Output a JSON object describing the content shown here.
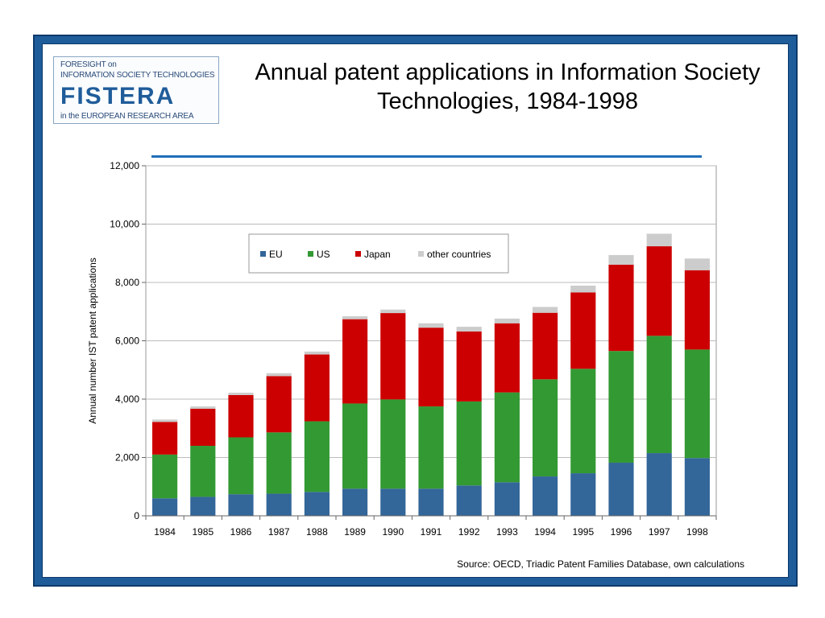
{
  "logo": {
    "line1": "FORESIGHT on",
    "line2": "INFORMATION SOCIETY TECHNOLOGIES",
    "brand": "FISTERA",
    "line4": "in the EUROPEAN RESEARCH AREA"
  },
  "title": "Annual patent applications in Information Society Technologies, 1984-1998",
  "source": "Source:  OECD, Triadic Patent Families Database, own calculations",
  "chart_data": {
    "type": "bar",
    "stacked": true,
    "title": "Annual patent applications in Information Society Technologies, 1984-1998",
    "xlabel": "",
    "ylabel": "Annual number IST patent applications",
    "ylim": [
      0,
      12000
    ],
    "yticks": [
      0,
      2000,
      4000,
      6000,
      8000,
      10000,
      12000
    ],
    "ytick_labels": [
      "0",
      "2,000",
      "4,000",
      "6,000",
      "8,000",
      "10,000",
      "12,000"
    ],
    "grid": true,
    "legend_position": "top-center",
    "categories": [
      "1984",
      "1985",
      "1986",
      "1987",
      "1988",
      "1989",
      "1990",
      "1991",
      "1992",
      "1993",
      "1994",
      "1995",
      "1996",
      "1997",
      "1998"
    ],
    "series": [
      {
        "name": "EU",
        "color": "#336699",
        "values": [
          600,
          650,
          740,
          760,
          820,
          930,
          930,
          930,
          1040,
          1150,
          1350,
          1460,
          1820,
          2150,
          1980
        ]
      },
      {
        "name": "US",
        "color": "#339933",
        "values": [
          1500,
          1750,
          1950,
          2100,
          2420,
          2920,
          3060,
          2820,
          2880,
          3080,
          3330,
          3580,
          3830,
          4020,
          3720
        ]
      },
      {
        "name": "Japan",
        "color": "#cc0000",
        "values": [
          1120,
          1270,
          1450,
          1930,
          2290,
          2890,
          2960,
          2700,
          2400,
          2370,
          2280,
          2620,
          2960,
          3070,
          2720
        ]
      },
      {
        "name": "other countries",
        "color": "#cccccc",
        "values": [
          80,
          80,
          80,
          100,
          100,
          100,
          120,
          150,
          160,
          160,
          200,
          230,
          330,
          430,
          400
        ]
      }
    ]
  }
}
